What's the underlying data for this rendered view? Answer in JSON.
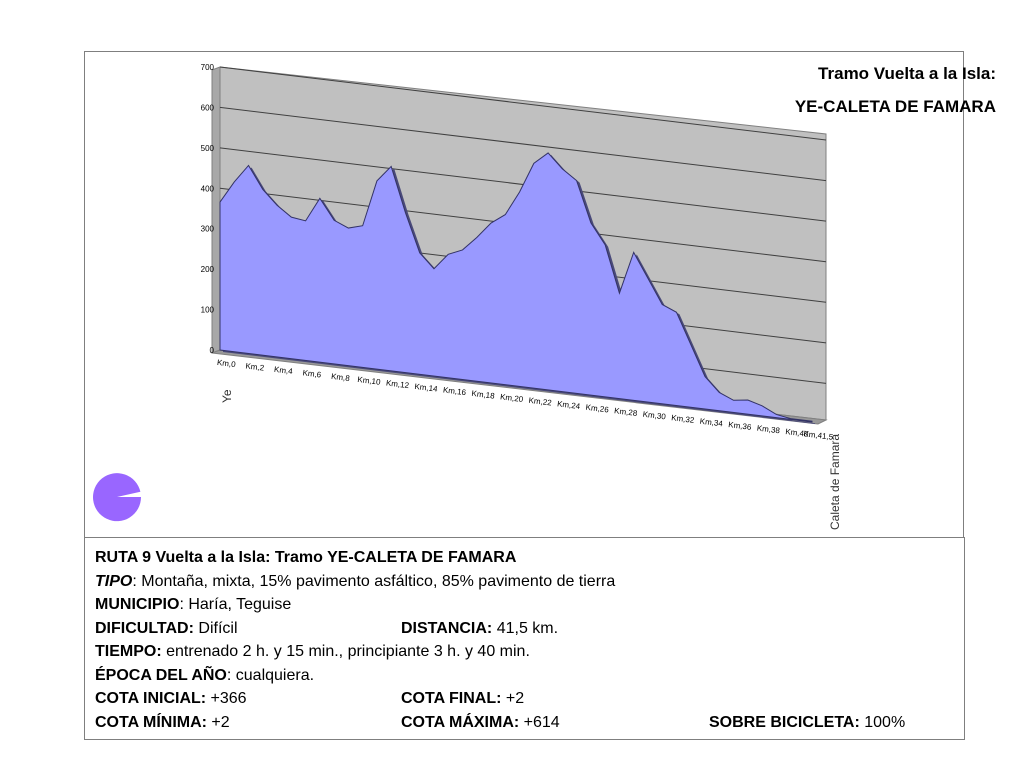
{
  "chart_data": {
    "type": "area",
    "title_line1": "Tramo Vuelta a la Isla:",
    "title_line2": "YE-CALETA DE FAMARA",
    "start_label": "Ye",
    "end_label": "Caleta de Famara",
    "ylim": [
      0,
      700
    ],
    "y_ticks": [
      "0",
      "100",
      "200",
      "300",
      "400",
      "500",
      "600",
      "700"
    ],
    "x_tick_labels": [
      "Km,0",
      "Km,2",
      "Km,4",
      "Km,6",
      "Km,8",
      "Km,10",
      "Km,12",
      "Km,14",
      "Km,16",
      "Km,18",
      "Km,20",
      "Km,22",
      "Km,24",
      "Km,26",
      "Km,28",
      "Km,30",
      "Km,32",
      "Km,34",
      "Km,36",
      "Km,38",
      "Km,40",
      "Km,41,5"
    ],
    "x": [
      0,
      1,
      2,
      3,
      4,
      5,
      6,
      7,
      8,
      9,
      10,
      11,
      12,
      13,
      14,
      15,
      16,
      17,
      18,
      19,
      20,
      21,
      22,
      23,
      24,
      25,
      26,
      27,
      28,
      29,
      30,
      31,
      32,
      33,
      34,
      35,
      36,
      37,
      38,
      39,
      40,
      41.5
    ],
    "values": [
      366,
      420,
      465,
      410,
      375,
      350,
      345,
      405,
      355,
      340,
      350,
      465,
      505,
      395,
      300,
      265,
      305,
      320,
      355,
      395,
      420,
      480,
      555,
      585,
      550,
      525,
      425,
      375,
      260,
      365,
      305,
      245,
      230,
      155,
      80,
      45,
      30,
      35,
      25,
      8,
      2,
      2
    ],
    "fill_color": "#9999ff",
    "grid": true
  },
  "info": {
    "title": "RUTA 9 Vuelta a la Isla: Tramo YE-CALETA DE FAMARA",
    "tipo_label": "TIPO",
    "tipo_value": ": Montaña, mixta, 15% pavimento asfáltico, 85% pavimento de tierra",
    "municipio_label": "MUNICIPIO",
    "municipio_value": ": Haría, Teguise",
    "dificultad_label": "DIFICULTAD:",
    "dificultad_value": " Difícil",
    "distancia_label": "DISTANCIA:",
    "distancia_value": " 41,5 km.",
    "tiempo_label": "TIEMPO:",
    "tiempo_value": " entrenado 2 h. y 15 min., principiante 3 h. y 40 min.",
    "epoca_label": "ÉPOCA DEL AÑO",
    "epoca_value": ": cualquiera.",
    "cota_inicial_label": "COTA INICIAL:",
    "cota_inicial_value": " +366",
    "cota_final_label": "COTA FINAL:",
    "cota_final_value": " +2",
    "cota_minima_label": "COTA MÍNIMA:",
    "cota_minima_value": " +2",
    "cota_maxima_label": "COTA MÁXIMA:",
    "cota_maxima_value": " +614",
    "bicicleta_label": "SOBRE BICICLETA:",
    "bicicleta_value": " 100%"
  },
  "colors": {
    "wall": "#c0c0c0",
    "area": "#9999ff",
    "area_edge": "#333366",
    "pie_icon": "#9966ff"
  },
  "icons": {
    "pie": "pie-chart-icon"
  }
}
